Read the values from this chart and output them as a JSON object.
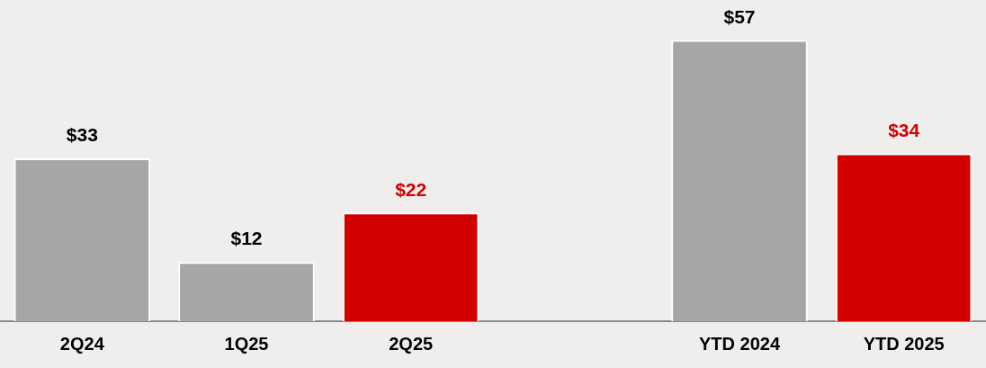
{
  "chart_data": {
    "type": "bar",
    "categories": [
      "2Q24",
      "1Q25",
      "2Q25",
      null,
      "YTD 2024",
      "YTD 2025"
    ],
    "values": [
      33,
      12,
      22,
      null,
      57,
      34
    ],
    "colors": [
      "#a6a6a6",
      "#a6a6a6",
      "#d40000",
      null,
      "#a6a6a6",
      "#d40000"
    ],
    "value_labels": [
      "$33",
      "$12",
      "$22",
      null,
      "$57",
      "$34"
    ],
    "grid": false,
    "legend": false
  }
}
